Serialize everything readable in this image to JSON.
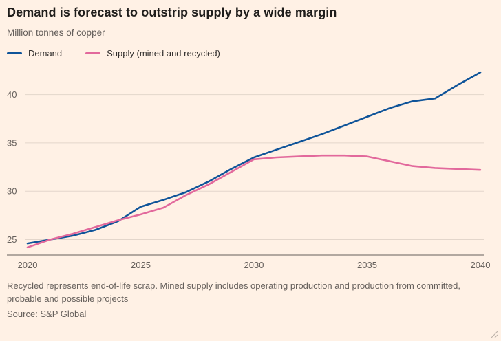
{
  "page": {
    "background": "#FFF1E5"
  },
  "header": {
    "title": "Demand is forecast to outstrip supply by a wide margin",
    "subtitle": "Million tonnes of copper"
  },
  "legend": {
    "items": [
      {
        "label": "Demand",
        "color": "#0F5499"
      },
      {
        "label": "Supply (mined and recycled)",
        "color": "#E2699C"
      }
    ]
  },
  "footnote": {
    "note": "Recycled represents end-of-life scrap. Mined supply includes operating production and production from committed, probable and possible projects",
    "source": "Source: S&P Global"
  },
  "chart_data": {
    "type": "line",
    "title": "Demand is forecast to outstrip supply by a wide margin",
    "ylabel": "Million tonnes of copper",
    "x": [
      2020,
      2021,
      2022,
      2023,
      2024,
      2025,
      2026,
      2027,
      2028,
      2029,
      2030,
      2031,
      2032,
      2033,
      2034,
      2035,
      2036,
      2037,
      2038,
      2039,
      2040
    ],
    "series": [
      {
        "name": "Demand",
        "color": "#0F5499",
        "values": [
          24.6,
          25.0,
          25.4,
          26.0,
          26.9,
          28.4,
          29.1,
          29.9,
          31.0,
          32.3,
          33.5,
          34.3,
          35.1,
          35.9,
          36.8,
          37.7,
          38.6,
          39.3,
          39.6,
          41.0,
          42.3
        ]
      },
      {
        "name": "Supply (mined and recycled)",
        "color": "#E2699C",
        "values": [
          24.2,
          25.0,
          25.6,
          26.3,
          27.0,
          27.6,
          28.3,
          29.6,
          30.7,
          32.0,
          33.3,
          33.5,
          33.6,
          33.7,
          33.7,
          33.6,
          33.1,
          32.6,
          32.4,
          32.3,
          32.2
        ]
      }
    ],
    "xticks": [
      2020,
      2025,
      2030,
      2035,
      2040
    ],
    "yticks": [
      25,
      30,
      35,
      40
    ],
    "ylim": [
      23.4,
      42.6
    ],
    "grid": true,
    "grid_color": "#E3D6CB",
    "axis_color": "#66605C",
    "legend_position": "top"
  }
}
